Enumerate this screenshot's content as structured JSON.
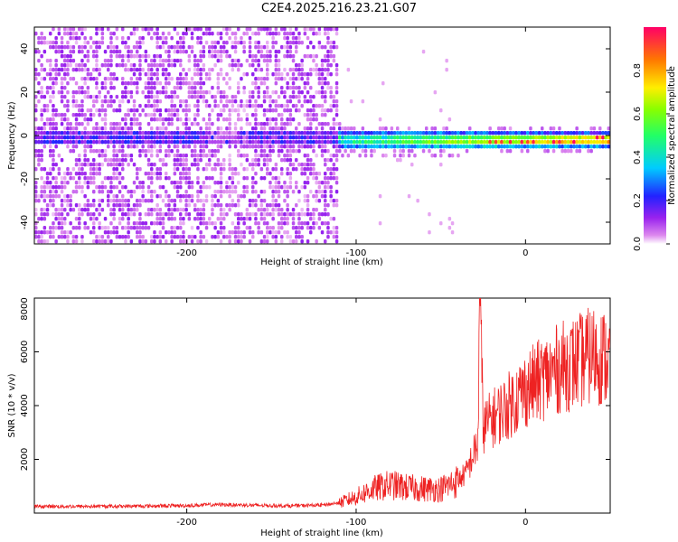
{
  "title": "C2E4.2025.216.23.21.G07",
  "colors": {
    "snr_line": "#ee2222",
    "axis": "#000000",
    "spectrogram_low": "#e8d8f8",
    "spectrogram_mid": "#7a22ee"
  },
  "chart_data": [
    {
      "type": "heatmap",
      "title": "C2E4.2025.216.23.21.G07",
      "xlabel": "Height of straight line (km)",
      "ylabel": "Frequency (Hz)",
      "xlim": [
        -290,
        50
      ],
      "ylim": [
        -50,
        50
      ],
      "xticks": [
        -200,
        -100,
        0
      ],
      "yticks": [
        -40,
        -20,
        0,
        20,
        40
      ],
      "colorbar": {
        "label": "Normalized spectral amplitude",
        "range": [
          0.0,
          1.0
        ],
        "ticks": [
          0.0,
          0.2,
          0.4,
          0.6,
          0.8
        ],
        "colormap": "rainbow (magenta-blue-cyan-green-yellow-red)"
      }
    },
    {
      "type": "line",
      "xlabel": "Height of straight line (km)",
      "ylabel": "SNR (10 * v/v)",
      "xlim": [
        -290,
        50
      ],
      "ylim": [
        0,
        8000
      ],
      "xticks": [
        -200,
        -100,
        0
      ],
      "yticks": [
        2000,
        4000,
        6000,
        8000
      ],
      "x": [
        -290,
        -260,
        -230,
        -200,
        -180,
        -160,
        -140,
        -120,
        -110,
        -100,
        -90,
        -80,
        -70,
        -60,
        -50,
        -40,
        -35,
        -30,
        -28,
        -27,
        -25,
        -20,
        -10,
        0,
        10,
        20,
        30,
        40,
        50
      ],
      "y": [
        250,
        250,
        260,
        280,
        320,
        290,
        270,
        300,
        380,
        600,
        900,
        1050,
        950,
        900,
        900,
        1200,
        1500,
        2300,
        2600,
        8000,
        3200,
        3500,
        4000,
        4600,
        5000,
        5400,
        5600,
        5900,
        5700
      ]
    }
  ]
}
